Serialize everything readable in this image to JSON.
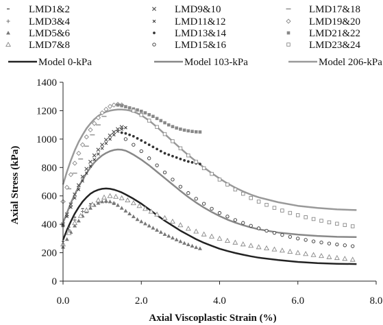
{
  "chart_data": {
    "type": "scatter",
    "xlabel": "Axial Viscoplastic Strain (%)",
    "ylabel": "Axial Stress (kPa)",
    "xlim": [
      0,
      8
    ],
    "ylim": [
      0,
      1400
    ],
    "x_ticks": [
      "0.0",
      "2.0",
      "4.0",
      "6.0",
      "8.0"
    ],
    "y_ticks": [
      "0",
      "200",
      "400",
      "600",
      "800",
      "1000",
      "1200",
      "1400"
    ],
    "x_tick_values": [
      0,
      2,
      4,
      6,
      8
    ],
    "y_tick_values": [
      0,
      200,
      400,
      600,
      800,
      1000,
      1200,
      1400
    ],
    "grid": false,
    "legend_position": "top",
    "series": [
      {
        "name": "LMD1&2",
        "marker": "dash-small",
        "color": "#555555",
        "x": [
          0.0,
          0.15,
          0.3,
          0.5,
          0.7,
          0.9,
          1.1,
          1.3
        ],
        "y": [
          280,
          380,
          450,
          510,
          545,
          560,
          555,
          540
        ]
      },
      {
        "name": "LMD3&4",
        "marker": "plus",
        "color": "#777777",
        "x": [
          0.0,
          0.15,
          0.3,
          0.5,
          0.7,
          0.9,
          1.1,
          1.3
        ],
        "y": [
          260,
          360,
          430,
          490,
          530,
          555,
          560,
          550
        ]
      },
      {
        "name": "LMD5&6",
        "marker": "triangle-filled",
        "color": "#777777",
        "x": [
          0.0,
          0.1,
          0.2,
          0.3,
          0.4,
          0.5,
          0.6,
          0.7,
          0.8,
          0.9,
          1.0,
          1.1,
          1.2,
          1.3,
          1.4,
          1.5,
          1.6,
          1.7,
          1.8,
          1.9,
          2.0,
          2.1,
          2.2,
          2.3,
          2.4,
          2.5,
          2.6,
          2.7,
          2.8,
          2.9,
          3.0,
          3.1,
          3.2,
          3.3,
          3.4,
          3.5
        ],
        "y": [
          240,
          295,
          345,
          390,
          425,
          460,
          490,
          515,
          535,
          550,
          560,
          565,
          560,
          550,
          535,
          515,
          495,
          475,
          455,
          435,
          420,
          405,
          390,
          375,
          360,
          345,
          330,
          318,
          305,
          292,
          280,
          268,
          258,
          248,
          238,
          230
        ]
      },
      {
        "name": "LMD7&8",
        "marker": "triangle-open",
        "color": "#888888",
        "x": [
          0.0,
          0.15,
          0.3,
          0.45,
          0.6,
          0.75,
          0.9,
          1.05,
          1.2,
          1.35,
          1.5,
          1.65,
          1.8,
          1.95,
          2.1,
          2.25,
          2.4,
          2.6,
          2.8,
          3.0,
          3.2,
          3.4,
          3.6,
          3.8,
          4.0,
          4.2,
          4.4,
          4.6,
          4.8,
          5.0,
          5.2,
          5.4,
          5.6,
          5.8,
          6.0,
          6.2,
          6.4,
          6.6,
          6.8,
          7.0,
          7.2,
          7.4
        ],
        "y": [
          260,
          340,
          410,
          460,
          500,
          540,
          570,
          590,
          600,
          595,
          585,
          570,
          550,
          530,
          510,
          490,
          470,
          445,
          420,
          395,
          370,
          350,
          330,
          315,
          300,
          285,
          272,
          260,
          250,
          240,
          232,
          224,
          216,
          208,
          200,
          192,
          185,
          178,
          170,
          164,
          158,
          152
        ]
      },
      {
        "name": "LMD9&10",
        "marker": "x",
        "color": "#555555",
        "x": [
          0.0,
          0.1,
          0.2,
          0.3,
          0.4,
          0.5,
          0.6,
          0.7,
          0.8,
          0.9,
          1.0,
          1.1,
          1.2,
          1.3,
          1.4,
          1.5
        ],
        "y": [
          400,
          470,
          540,
          610,
          675,
          735,
          790,
          840,
          885,
          925,
          960,
          995,
          1025,
          1050,
          1070,
          1085
        ]
      },
      {
        "name": "LMD11&12",
        "marker": "x-small",
        "color": "#333333",
        "x": [
          0.0,
          0.1,
          0.2,
          0.3,
          0.4,
          0.5,
          0.6,
          0.7,
          0.8,
          0.9,
          1.0,
          1.1,
          1.2,
          1.3,
          1.4,
          1.5,
          1.6
        ],
        "y": [
          390,
          455,
          520,
          585,
          645,
          705,
          760,
          810,
          855,
          895,
          935,
          970,
          1000,
          1030,
          1055,
          1070,
          1080
        ]
      },
      {
        "name": "LMD13&14",
        "marker": "dot-filled",
        "color": "#333333",
        "x": [
          1.5,
          1.6,
          1.7,
          1.8,
          1.9,
          2.0,
          2.1,
          2.2,
          2.3,
          2.4,
          2.5,
          2.6,
          2.7,
          2.8,
          2.9,
          3.0,
          3.1,
          3.2,
          3.3,
          3.4,
          3.5
        ],
        "y": [
          1045,
          1040,
          1030,
          1020,
          1005,
          990,
          975,
          960,
          945,
          930,
          915,
          900,
          890,
          880,
          870,
          860,
          850,
          842,
          836,
          830,
          825
        ]
      },
      {
        "name": "LMD15&16",
        "marker": "circle-open",
        "color": "#333333",
        "x": [
          1.6,
          1.8,
          2.0,
          2.2,
          2.4,
          2.6,
          2.8,
          3.0,
          3.2,
          3.4,
          3.6,
          3.8,
          4.0,
          4.2,
          4.4,
          4.6,
          4.8,
          5.0,
          5.2,
          5.4,
          5.6,
          5.8,
          6.0,
          6.2,
          6.4,
          6.6,
          6.8,
          7.0,
          7.2,
          7.4
        ],
        "y": [
          1000,
          960,
          915,
          865,
          815,
          765,
          715,
          665,
          620,
          580,
          545,
          510,
          480,
          455,
          430,
          410,
          390,
          372,
          355,
          340,
          325,
          312,
          300,
          290,
          280,
          272,
          265,
          258,
          252,
          246
        ]
      },
      {
        "name": "LMD17&18",
        "marker": "dash",
        "color": "#999999",
        "x": [
          0.0,
          0.15,
          0.3,
          0.45,
          0.6,
          0.75,
          0.9,
          1.05
        ],
        "y": [
          560,
          650,
          760,
          860,
          950,
          1030,
          1100,
          1160
        ]
      },
      {
        "name": "LMD19&20",
        "marker": "diamond-open",
        "color": "#888888",
        "x": [
          0.0,
          0.1,
          0.2,
          0.3,
          0.4,
          0.5,
          0.6,
          0.7,
          0.8,
          0.9,
          1.0,
          1.1,
          1.2,
          1.3,
          1.4,
          1.5
        ],
        "y": [
          560,
          660,
          750,
          830,
          900,
          960,
          1015,
          1065,
          1110,
          1150,
          1185,
          1210,
          1230,
          1240,
          1245,
          1240
        ]
      },
      {
        "name": "LMD21&22",
        "marker": "square-filled",
        "color": "#888888",
        "x": [
          1.4,
          1.5,
          1.6,
          1.7,
          1.8,
          1.9,
          2.0,
          2.1,
          2.2,
          2.3,
          2.4,
          2.5,
          2.6,
          2.7,
          2.8,
          2.9,
          3.0,
          3.1,
          3.2,
          3.3,
          3.4,
          3.5
        ],
        "y": [
          1240,
          1235,
          1228,
          1220,
          1212,
          1205,
          1196,
          1185,
          1172,
          1160,
          1145,
          1130,
          1115,
          1100,
          1088,
          1078,
          1070,
          1063,
          1058,
          1054,
          1051,
          1050
        ]
      },
      {
        "name": "LMD23&24",
        "marker": "square-open",
        "color": "#888888",
        "x": [
          1.8,
          2.0,
          2.2,
          2.4,
          2.6,
          2.8,
          3.0,
          3.2,
          3.4,
          3.6,
          3.8,
          4.0,
          4.2,
          4.4,
          4.6,
          4.8,
          5.0,
          5.2,
          5.4,
          5.6,
          5.8,
          6.0,
          6.2,
          6.4,
          6.6,
          6.8,
          7.0,
          7.2,
          7.4
        ],
        "y": [
          1200,
          1170,
          1130,
          1085,
          1035,
          985,
          935,
          885,
          840,
          795,
          755,
          715,
          680,
          645,
          615,
          585,
          560,
          537,
          516,
          497,
          480,
          464,
          450,
          437,
          425,
          414,
          404,
          395,
          386
        ]
      },
      {
        "name": "Model 0-kPa",
        "marker": "line",
        "color": "#222222",
        "line_width": 2.5,
        "x": [
          0.0,
          0.1,
          0.2,
          0.3,
          0.4,
          0.5,
          0.6,
          0.7,
          0.8,
          0.9,
          1.0,
          1.1,
          1.2,
          1.3,
          1.4,
          1.5,
          1.6,
          1.8,
          2.0,
          2.2,
          2.4,
          2.6,
          2.8,
          3.0,
          3.2,
          3.4,
          3.6,
          3.8,
          4.0,
          4.2,
          4.4,
          4.6,
          4.8,
          5.0,
          5.5,
          6.0,
          6.5,
          7.0,
          7.5
        ],
        "y": [
          290,
          360,
          420,
          475,
          520,
          560,
          590,
          615,
          632,
          643,
          650,
          652,
          650,
          644,
          635,
          624,
          610,
          580,
          545,
          505,
          465,
          425,
          390,
          355,
          325,
          295,
          270,
          248,
          228,
          212,
          198,
          186,
          175,
          165,
          148,
          135,
          127,
          122,
          120
        ]
      },
      {
        "name": "Model 103-kPa",
        "marker": "line",
        "color": "#888888",
        "line_width": 2.5,
        "x": [
          0.0,
          0.1,
          0.2,
          0.3,
          0.4,
          0.5,
          0.6,
          0.7,
          0.8,
          0.9,
          1.0,
          1.1,
          1.2,
          1.3,
          1.4,
          1.5,
          1.6,
          1.7,
          1.8,
          2.0,
          2.2,
          2.4,
          2.6,
          2.8,
          3.0,
          3.2,
          3.4,
          3.6,
          3.8,
          4.0,
          4.2,
          4.4,
          4.6,
          4.8,
          5.0,
          5.5,
          6.0,
          6.5,
          7.0,
          7.5
        ],
        "y": [
          410,
          480,
          550,
          610,
          665,
          715,
          760,
          800,
          835,
          862,
          885,
          902,
          915,
          923,
          927,
          925,
          918,
          905,
          890,
          855,
          815,
          770,
          725,
          680,
          635,
          592,
          553,
          518,
          486,
          458,
          433,
          412,
          394,
          378,
          365,
          342,
          328,
          318,
          312,
          310
        ]
      },
      {
        "name": "Model 206-kPa",
        "marker": "line",
        "color": "#999999",
        "line_width": 2.5,
        "x": [
          0.0,
          0.1,
          0.2,
          0.3,
          0.4,
          0.5,
          0.6,
          0.7,
          0.8,
          0.9,
          1.0,
          1.1,
          1.2,
          1.3,
          1.4,
          1.5,
          1.6,
          1.7,
          1.8,
          1.9,
          2.0,
          2.2,
          2.4,
          2.6,
          2.8,
          3.0,
          3.2,
          3.4,
          3.6,
          3.8,
          4.0,
          4.2,
          4.4,
          4.6,
          4.8,
          5.0,
          5.5,
          6.0,
          6.5,
          7.0,
          7.5
        ],
        "y": [
          680,
          770,
          850,
          920,
          980,
          1030,
          1075,
          1110,
          1140,
          1163,
          1180,
          1192,
          1200,
          1205,
          1208,
          1208,
          1206,
          1201,
          1193,
          1182,
          1168,
          1130,
          1085,
          1035,
          985,
          935,
          887,
          843,
          800,
          760,
          722,
          688,
          658,
          632,
          609,
          590,
          555,
          530,
          515,
          505,
          500
        ]
      }
    ]
  }
}
